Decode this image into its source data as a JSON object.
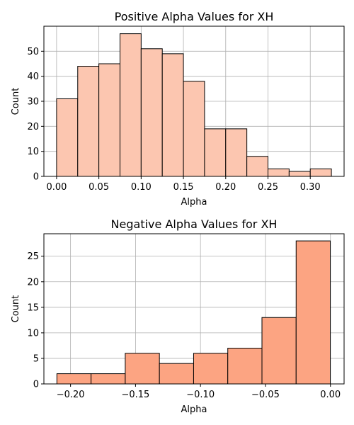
{
  "chart_data": [
    {
      "type": "bar",
      "title": "Positive Alpha Values for XH",
      "xlabel": "Alpha",
      "ylabel": "Count",
      "bin_edges": [
        0.0,
        0.025,
        0.05,
        0.075,
        0.1,
        0.125,
        0.15,
        0.175,
        0.2,
        0.225,
        0.25,
        0.275,
        0.3,
        0.325
      ],
      "values": [
        31,
        44,
        45,
        57,
        51,
        49,
        38,
        19,
        19,
        8,
        3,
        2,
        3
      ],
      "xlim": [
        -0.015,
        0.34
      ],
      "ylim": [
        0,
        60
      ],
      "xticks": [
        0.0,
        0.05,
        0.1,
        0.15,
        0.2,
        0.25,
        0.3
      ],
      "xtick_labels": [
        "0.00",
        "0.05",
        "0.10",
        "0.15",
        "0.20",
        "0.25",
        "0.30"
      ],
      "yticks": [
        0,
        10,
        20,
        30,
        40,
        50
      ],
      "ytick_labels": [
        "0",
        "10",
        "20",
        "30",
        "40",
        "50"
      ],
      "grid": true,
      "bar_color": "#fcc6b0",
      "edge_color": "#000000"
    },
    {
      "type": "bar",
      "title": "Negative Alpha Values for XH",
      "xlabel": "Alpha",
      "ylabel": "Count",
      "bin_edges": [
        -0.2105,
        -0.1842,
        -0.1579,
        -0.1316,
        -0.1053,
        -0.079,
        -0.0527,
        -0.0264,
        -0.0001
      ],
      "values": [
        2,
        2,
        6,
        4,
        6,
        7,
        13,
        28
      ],
      "xlim": [
        -0.2205,
        0.0105
      ],
      "ylim": [
        0,
        29.4
      ],
      "xticks": [
        -0.2,
        -0.15,
        -0.1,
        -0.05,
        0.0
      ],
      "xtick_labels": [
        "−0.20",
        "−0.15",
        "−0.10",
        "−0.05",
        "0.00"
      ],
      "yticks": [
        0,
        5,
        10,
        15,
        20,
        25
      ],
      "ytick_labels": [
        "0",
        "5",
        "10",
        "15",
        "20",
        "25"
      ],
      "grid": true,
      "bar_color": "#fca482",
      "edge_color": "#000000"
    }
  ]
}
